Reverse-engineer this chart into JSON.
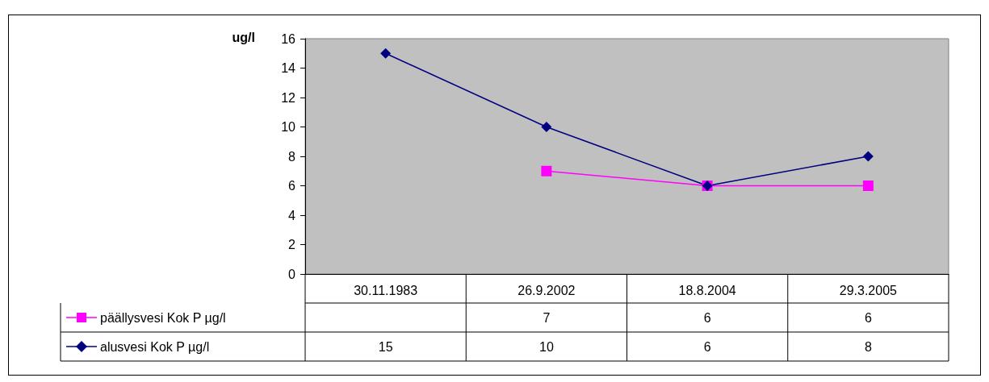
{
  "chart_data": {
    "type": "line",
    "ylabel": "ug/l",
    "categories": [
      "30.11.1983",
      "26.9.2002",
      "18.8.2004",
      "29.3.2005"
    ],
    "series": [
      {
        "name": "päällysvesi Kok P µg/l",
        "color": "#ff00ff",
        "marker": "square",
        "values": [
          null,
          7,
          6,
          6
        ]
      },
      {
        "name": "alusvesi Kok P µg/l",
        "color": "#000080",
        "marker": "diamond",
        "values": [
          15,
          10,
          6,
          8
        ]
      }
    ],
    "ylim": [
      0,
      16
    ],
    "yticks": [
      0,
      2,
      4,
      6,
      8,
      10,
      12,
      14,
      16
    ],
    "grid": false,
    "legend": "bottom",
    "data_labels": true
  }
}
